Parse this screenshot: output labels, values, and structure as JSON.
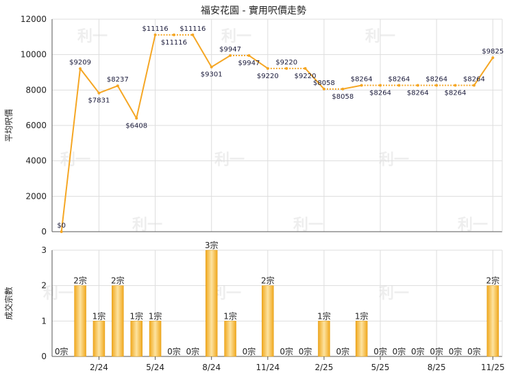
{
  "title": "福安花園 - 實用呎價走勢",
  "watermark_text": "利一",
  "colors": {
    "line": "#f5a623",
    "point": "#f5a623",
    "bar_light": "#fde3a0",
    "bar_dark": "#f0a81e",
    "grid": "#dddddd",
    "axis": "#555555",
    "label": "#1a1a3a"
  },
  "chart_data": [
    {
      "type": "line",
      "ylabel": "平均呎價",
      "ylim": [
        0,
        12000
      ],
      "yticks": [
        0,
        2000,
        4000,
        6000,
        8000,
        10000,
        12000
      ],
      "grid": true,
      "points": [
        {
          "i": 0,
          "value": 0,
          "label": "$0",
          "pos": "above"
        },
        {
          "i": 1,
          "value": 9209,
          "label": "$9209",
          "pos": "above"
        },
        {
          "i": 2,
          "value": 7831,
          "label": "$7831",
          "pos": "below"
        },
        {
          "i": 3,
          "value": 8237,
          "label": "$8237",
          "pos": "above"
        },
        {
          "i": 4,
          "value": 6408,
          "label": "$6408",
          "pos": "below"
        },
        {
          "i": 5,
          "value": 11116,
          "label": "$11116",
          "pos": "above"
        },
        {
          "i": 6,
          "value": 11116,
          "label": "$11116",
          "pos": "below"
        },
        {
          "i": 7,
          "value": 11116,
          "label": "$11116",
          "pos": "above"
        },
        {
          "i": 8,
          "value": 9301,
          "label": "$9301",
          "pos": "below"
        },
        {
          "i": 9,
          "value": 9947,
          "label": "$9947",
          "pos": "above"
        },
        {
          "i": 10,
          "value": 9947,
          "label": "$9947",
          "pos": "below"
        },
        {
          "i": 11,
          "value": 9220,
          "label": "$9220",
          "pos": "below"
        },
        {
          "i": 12,
          "value": 9220,
          "label": "$9220",
          "pos": "above"
        },
        {
          "i": 13,
          "value": 9220,
          "label": "$9220",
          "pos": "below"
        },
        {
          "i": 14,
          "value": 8058,
          "label": "$8058",
          "pos": "above"
        },
        {
          "i": 15,
          "value": 8058,
          "label": "$8058",
          "pos": "below"
        },
        {
          "i": 16,
          "value": 8264,
          "label": "$8264",
          "pos": "above"
        },
        {
          "i": 17,
          "value": 8264,
          "label": "$8264",
          "pos": "below"
        },
        {
          "i": 18,
          "value": 8264,
          "label": "$8264",
          "pos": "above"
        },
        {
          "i": 19,
          "value": 8264,
          "label": "$8264",
          "pos": "below"
        },
        {
          "i": 20,
          "value": 8264,
          "label": "$8264",
          "pos": "above"
        },
        {
          "i": 21,
          "value": 8264,
          "label": "$8264",
          "pos": "below"
        },
        {
          "i": 22,
          "value": 8264,
          "label": "$8264",
          "pos": "above"
        },
        {
          "i": 23,
          "value": 9825,
          "label": "$9825",
          "pos": "above"
        }
      ]
    },
    {
      "type": "bar",
      "ylabel": "成交宗數",
      "ylim": [
        0,
        3
      ],
      "yticks": [
        0,
        1,
        2,
        3
      ],
      "grid": true,
      "values": [
        0,
        2,
        1,
        2,
        1,
        1,
        0,
        0,
        3,
        1,
        0,
        2,
        0,
        0,
        1,
        0,
        1,
        0,
        0,
        0,
        0,
        0,
        0,
        2
      ],
      "value_labels": [
        "0宗",
        "2宗",
        "1宗",
        "2宗",
        "1宗",
        "1宗",
        "0宗",
        "0宗",
        "3宗",
        "1宗",
        "0宗",
        "2宗",
        "0宗",
        "0宗",
        "1宗",
        "0宗",
        "1宗",
        "0宗",
        "0宗",
        "0宗",
        "0宗",
        "0宗",
        "0宗",
        "2宗"
      ],
      "x_ticks": [
        {
          "i": 2,
          "label": "2/24"
        },
        {
          "i": 5,
          "label": "5/24"
        },
        {
          "i": 8,
          "label": "8/24"
        },
        {
          "i": 11,
          "label": "11/24"
        },
        {
          "i": 14,
          "label": "2/25"
        },
        {
          "i": 17,
          "label": "5/25"
        },
        {
          "i": 20,
          "label": "8/25"
        },
        {
          "i": 23,
          "label": "11/25"
        }
      ]
    }
  ]
}
